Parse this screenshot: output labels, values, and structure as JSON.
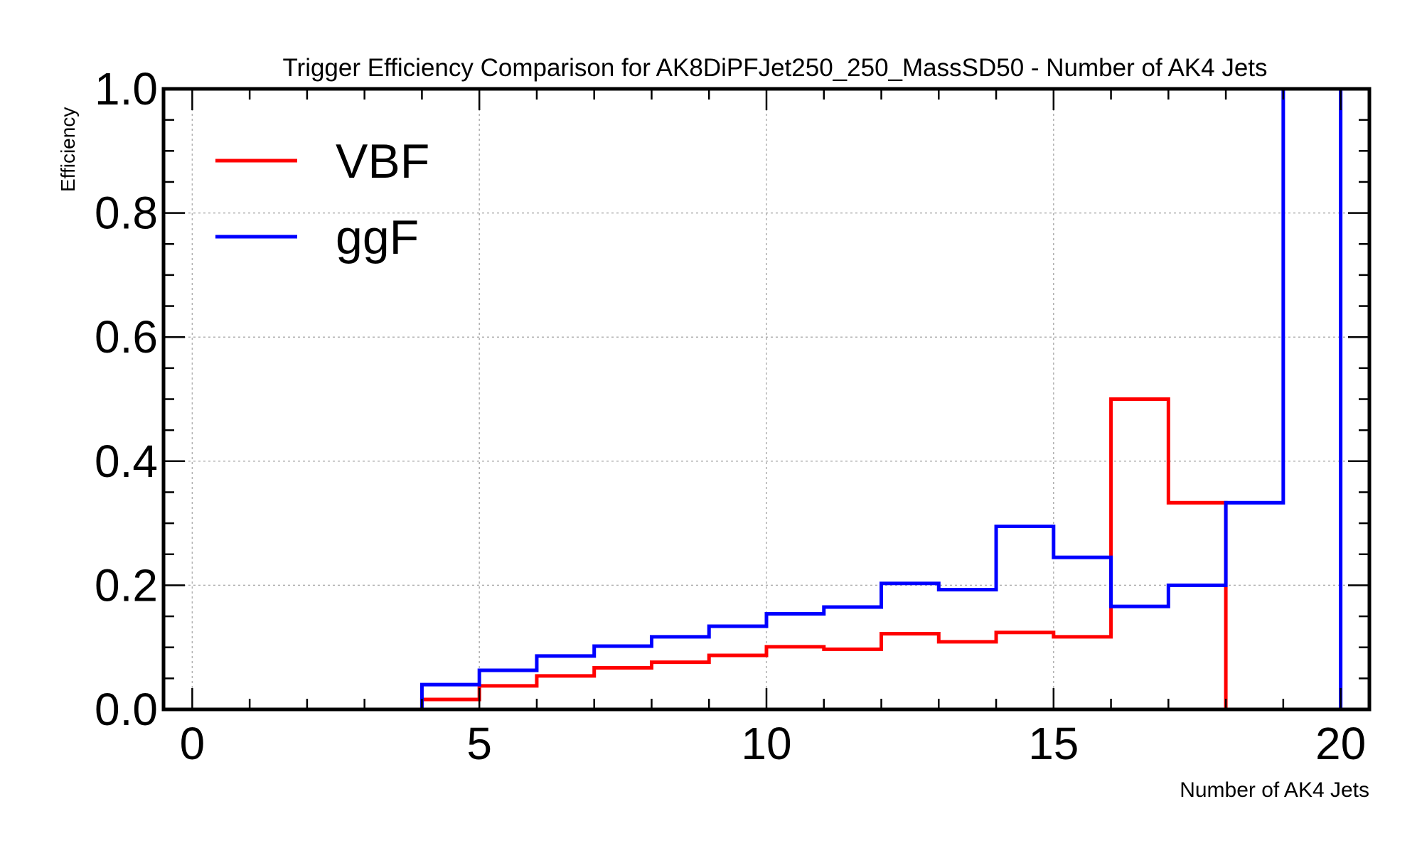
{
  "chart_data": {
    "type": "line",
    "drawstyle": "steps-histogram",
    "title": "Trigger Efficiency Comparison for AK8DiPFJet250_250_MassSD50 - Number of AK4 Jets",
    "xlabel": "Number of AK4 Jets",
    "ylabel": "Efficiency",
    "xlim": [
      -0.5,
      20.5
    ],
    "ylim": [
      0.0,
      1.0
    ],
    "x_major_ticks": [
      0,
      5,
      10,
      15,
      20
    ],
    "y_major_ticks": [
      0.0,
      0.2,
      0.4,
      0.6,
      0.8,
      1.0
    ],
    "x_tick_labels": [
      "0",
      "5",
      "10",
      "15",
      "20"
    ],
    "y_tick_labels": [
      "0.0",
      "0.2",
      "0.4",
      "0.6",
      "0.8",
      "1.0"
    ],
    "grid": true,
    "legend": "top-left",
    "bin_edges": [
      0,
      1,
      2,
      3,
      4,
      5,
      6,
      7,
      8,
      9,
      10,
      11,
      12,
      13,
      14,
      15,
      16,
      17,
      18,
      19,
      20
    ],
    "series": [
      {
        "name": "VBF",
        "color": "#ff0000",
        "values": [
          0,
          0,
          0,
          0,
          0.016,
          0.038,
          0.054,
          0.067,
          0.076,
          0.087,
          0.101,
          0.097,
          0.122,
          0.109,
          0.124,
          0.117,
          0.5,
          0.333,
          0,
          0
        ]
      },
      {
        "name": "ggF",
        "color": "#0000ff",
        "values": [
          0,
          0,
          0,
          0,
          0.04,
          0.063,
          0.086,
          0.102,
          0.117,
          0.134,
          0.154,
          0.165,
          0.203,
          0.193,
          0.295,
          0.245,
          0.166,
          0.2,
          0.333,
          1.0
        ]
      }
    ]
  }
}
